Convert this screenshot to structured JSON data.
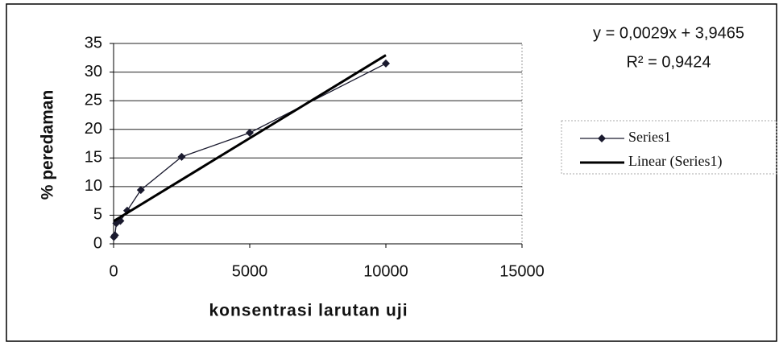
{
  "chart_data": {
    "type": "scatter",
    "x_label": "konsentrasi larutan uji",
    "y_label": "% peredaman",
    "equation": "y = 0,0029x + 3,9465",
    "r_squared": "R² = 0,9424",
    "xlim": [
      0,
      15000
    ],
    "xticks": [
      0,
      5000,
      10000,
      15000
    ],
    "ylim": [
      0,
      35
    ],
    "yticks": [
      0,
      5,
      10,
      15,
      20,
      25,
      30,
      35
    ],
    "grid": true,
    "legend": "right",
    "series": [
      {
        "name": "Series1",
        "color": "#1a1a2e",
        "marker": "diamond",
        "x": [
          10,
          50,
          100,
          250,
          500,
          1000,
          2500,
          5000,
          10000
        ],
        "values": [
          1.2,
          1.5,
          3.6,
          4.0,
          5.8,
          9.4,
          15.2,
          19.4,
          31.5
        ]
      },
      {
        "name": "Linear (Series1)",
        "color": "#000000",
        "marker": "none",
        "x": [
          10,
          10000
        ],
        "values": [
          3.98,
          32.95
        ]
      }
    ]
  }
}
